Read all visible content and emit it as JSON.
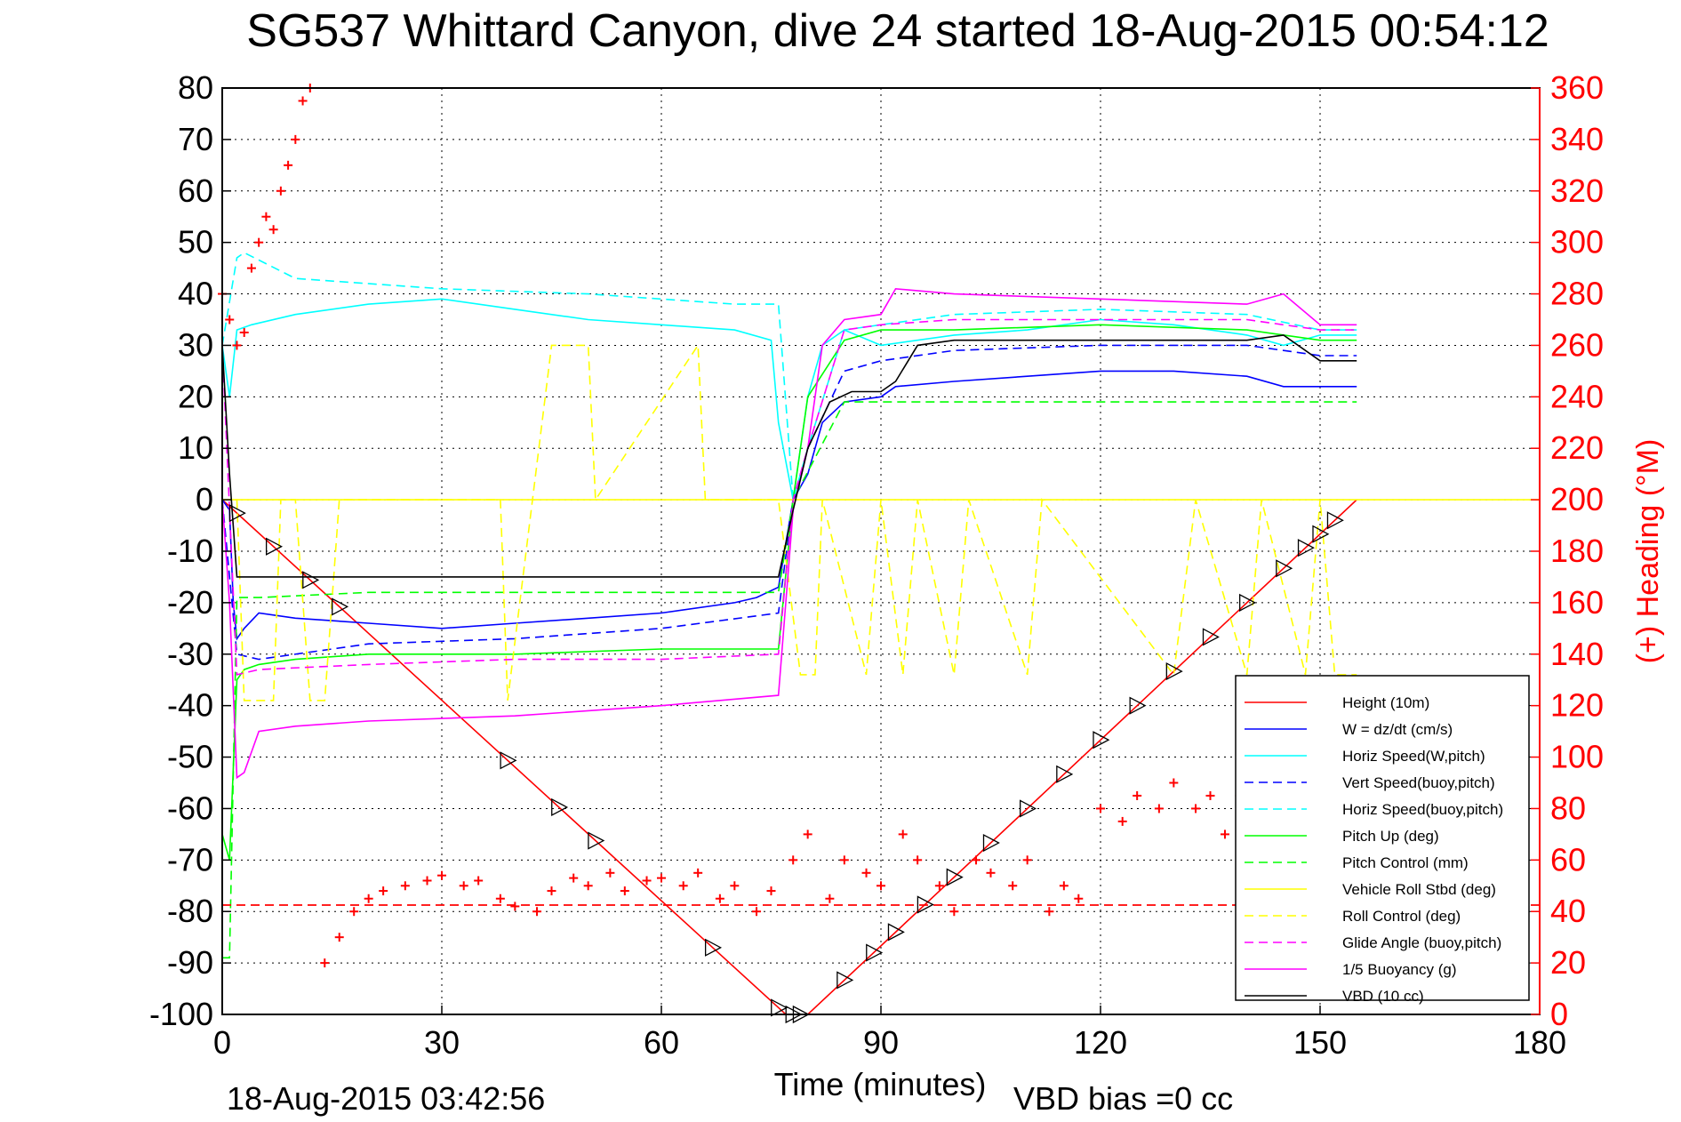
{
  "chart_data": {
    "type": "line",
    "title": "SG537 Whittard Canyon, dive 24 started 18-Aug-2015 00:54:12",
    "xlabel": "Time (minutes)",
    "ylabel": "",
    "y2label": "(+) Heading (°M)",
    "xlim": [
      0,
      180
    ],
    "ylim": [
      -100,
      80
    ],
    "y2lim": [
      0,
      360
    ],
    "xticks": [
      0,
      30,
      60,
      90,
      120,
      150,
      180
    ],
    "yticks": [
      80,
      70,
      60,
      50,
      40,
      30,
      20,
      10,
      0,
      -10,
      -20,
      -30,
      -40,
      -50,
      -60,
      -70,
      -80,
      -90,
      -100
    ],
    "y2ticks": [
      360,
      340,
      320,
      300,
      280,
      260,
      240,
      220,
      200,
      180,
      160,
      140,
      120,
      100,
      80,
      60,
      40,
      20,
      0
    ],
    "grid": true,
    "legend_position": "bottom-right",
    "footer_left": "18-Aug-2015 03:42:56",
    "footer_right": "VBD bias =0 cc",
    "colors": {
      "red": "#ff0000",
      "blue": "#0000ff",
      "cyan": "#00ffff",
      "green": "#00ff00",
      "yellow": "#ffff00",
      "magenta": "#ff00ff",
      "black": "#000000"
    },
    "series": [
      {
        "name": "Height (10m)",
        "color": "#ff0000",
        "dash": "solid",
        "x": [
          0,
          77,
          80,
          155
        ],
        "y": [
          0,
          -100,
          -100,
          0
        ]
      },
      {
        "name": "W = dz/dt (cm/s)",
        "color": "#0000ff",
        "dash": "solid",
        "x": [
          0,
          1,
          1.5,
          2,
          3,
          5,
          10,
          20,
          30,
          40,
          50,
          60,
          70,
          73,
          76,
          78,
          80,
          82,
          85,
          90,
          92,
          100,
          110,
          120,
          130,
          140,
          145,
          150,
          155
        ],
        "y": [
          0,
          -2,
          -20,
          -27,
          -25,
          -22,
          -23,
          -24,
          -25,
          -24,
          -23,
          -22,
          -20,
          -19,
          -17,
          0,
          5,
          15,
          19,
          20,
          22,
          23,
          24,
          25,
          25,
          24,
          22,
          22,
          22
        ]
      },
      {
        "name": "Horiz Speed(W,pitch)",
        "color": "#00ffff",
        "dash": "solid",
        "x": [
          0,
          1,
          2,
          4,
          10,
          20,
          30,
          40,
          50,
          60,
          70,
          75,
          76,
          78,
          80,
          82,
          85,
          90,
          100,
          110,
          120,
          130,
          140,
          145,
          150,
          155
        ],
        "y": [
          30,
          20,
          33,
          34,
          36,
          38,
          39,
          37,
          35,
          34,
          33,
          31,
          15,
          0,
          20,
          30,
          33,
          30,
          32,
          33,
          35,
          34,
          32,
          30,
          32,
          32
        ]
      },
      {
        "name": "Vert Speed(buoy,pitch)",
        "color": "#0000ff",
        "dash": "dashed",
        "x": [
          0,
          2,
          5,
          20,
          40,
          60,
          76,
          78,
          80,
          85,
          90,
          100,
          120,
          140,
          150,
          155
        ],
        "y": [
          0,
          -30,
          -31,
          -28,
          -27,
          -25,
          -22,
          0,
          10,
          25,
          27,
          29,
          30,
          30,
          28,
          28
        ]
      },
      {
        "name": "Horiz Speed(buoy,pitch)",
        "color": "#00ffff",
        "dash": "dashed",
        "x": [
          0,
          2,
          3,
          10,
          30,
          50,
          70,
          76,
          78,
          80,
          85,
          90,
          100,
          120,
          140,
          150,
          155
        ],
        "y": [
          30,
          47,
          48,
          43,
          41,
          40,
          38,
          38,
          0,
          10,
          33,
          34,
          36,
          37,
          36,
          33,
          33
        ]
      },
      {
        "name": "Pitch Up (deg)",
        "color": "#00ff00",
        "dash": "solid",
        "x": [
          0,
          1,
          2,
          3,
          5,
          10,
          20,
          40,
          60,
          76,
          78,
          80,
          85,
          90,
          100,
          120,
          140,
          150,
          155
        ],
        "y": [
          -65,
          -70,
          -35,
          -33,
          -32,
          -31,
          -30,
          -30,
          -29,
          -29,
          0,
          20,
          31,
          33,
          33,
          34,
          33,
          31,
          31
        ]
      },
      {
        "name": "Pitch Control (mm)",
        "color": "#00ff00",
        "dash": "dashed",
        "x": [
          0,
          1,
          2,
          5,
          20,
          40,
          60,
          76,
          78,
          85,
          90,
          120,
          150,
          155
        ],
        "y": [
          -89,
          -89,
          -19,
          -19,
          -18,
          -18,
          -18,
          -18,
          0,
          19,
          19,
          19,
          19,
          19
        ]
      },
      {
        "name": "Vehicle Roll Stbd (deg)",
        "color": "#ffff00",
        "dash": "solid",
        "x": [
          0,
          180
        ],
        "y": [
          0,
          0
        ]
      },
      {
        "name": "Roll Control (deg)",
        "color": "#ffff00",
        "dash": "dashed",
        "x": [
          0,
          2,
          3,
          7,
          8,
          10,
          12,
          14,
          16,
          38,
          39,
          45,
          47,
          50,
          51,
          65,
          66,
          76,
          79,
          81,
          82,
          88,
          90,
          93,
          95,
          100,
          102,
          110,
          112,
          130,
          133,
          140,
          142,
          148,
          150,
          152,
          155
        ],
        "y": [
          0,
          0,
          -39,
          -39,
          0,
          0,
          -39,
          -39,
          0,
          0,
          -39,
          30,
          30,
          30,
          0,
          30,
          0,
          0,
          -34,
          -34,
          0,
          -34,
          0,
          -34,
          0,
          -34,
          0,
          -34,
          0,
          -34,
          0,
          -34,
          0,
          -34,
          0,
          -34,
          -34
        ]
      },
      {
        "name": "Glide Angle (buoy,pitch)",
        "color": "#ff00ff",
        "dash": "dashed",
        "x": [
          0,
          2,
          5,
          20,
          40,
          60,
          76,
          78,
          80,
          85,
          90,
          100,
          120,
          140,
          150,
          155
        ],
        "y": [
          30,
          -34,
          -33,
          -32,
          -31,
          -31,
          -30,
          0,
          10,
          33,
          34,
          35,
          35,
          35,
          33,
          33
        ]
      },
      {
        "name": "1/5 Buoyancy (g)",
        "color": "#ff00ff",
        "dash": "solid",
        "x": [
          0,
          1,
          2,
          3,
          5,
          10,
          20,
          40,
          60,
          76,
          78,
          80,
          82,
          85,
          90,
          92,
          100,
          120,
          140,
          145,
          150,
          155
        ],
        "y": [
          0,
          -20,
          -54,
          -53,
          -45,
          -44,
          -43,
          -42,
          -40,
          -38,
          -2,
          10,
          30,
          35,
          36,
          41,
          40,
          39,
          38,
          40,
          34,
          34
        ]
      },
      {
        "name": "VBD (10 cc)",
        "color": "#000000",
        "dash": "solid",
        "x": [
          0,
          1,
          2,
          3,
          10,
          30,
          60,
          76,
          78,
          80,
          83,
          86,
          90,
          92,
          95,
          100,
          110,
          120,
          130,
          140,
          145,
          150,
          155
        ],
        "y": [
          30,
          5,
          -15,
          -15,
          -15,
          -15,
          -15,
          -15,
          -2,
          10,
          19,
          21,
          21,
          23,
          30,
          31,
          31,
          31,
          31,
          31,
          32,
          27,
          27
        ]
      }
    ],
    "heading_series": {
      "name": "(+) Heading (°M)",
      "color": "#ff0000",
      "x": [
        0,
        1,
        2,
        3,
        4,
        5,
        6,
        7,
        8,
        9,
        10,
        11,
        12,
        14,
        16,
        18,
        20,
        22,
        25,
        28,
        30,
        33,
        35,
        38,
        40,
        43,
        45,
        48,
        50,
        53,
        55,
        58,
        60,
        63,
        65,
        68,
        70,
        73,
        75,
        78,
        80,
        83,
        85,
        88,
        90,
        93,
        95,
        98,
        100,
        103,
        105,
        108,
        110,
        113,
        115,
        117,
        120,
        123,
        125,
        128,
        130,
        133,
        135,
        137,
        139
      ],
      "y": [
        280,
        270,
        260,
        265,
        290,
        300,
        310,
        305,
        320,
        330,
        340,
        355,
        360,
        20,
        30,
        40,
        45,
        48,
        50,
        52,
        54,
        50,
        52,
        45,
        42,
        40,
        48,
        53,
        50,
        55,
        48,
        52,
        53,
        50,
        55,
        45,
        50,
        40,
        48,
        60,
        70,
        45,
        60,
        55,
        50,
        70,
        60,
        50,
        40,
        60,
        55,
        50,
        60,
        40,
        50,
        45,
        80,
        75,
        85,
        80,
        90,
        80,
        85,
        70,
        85
      ]
    },
    "heading_reference": {
      "value": 42.5,
      "color": "#ff0000",
      "dash": "dashed"
    },
    "markers": {
      "symbol": "triangle",
      "x": [
        2,
        7,
        12,
        16,
        39,
        46,
        51,
        67,
        76,
        78,
        79,
        85,
        89,
        92,
        96,
        100,
        105,
        110,
        115,
        120,
        125,
        130,
        135,
        140,
        145,
        148,
        150,
        152
      ]
    }
  }
}
